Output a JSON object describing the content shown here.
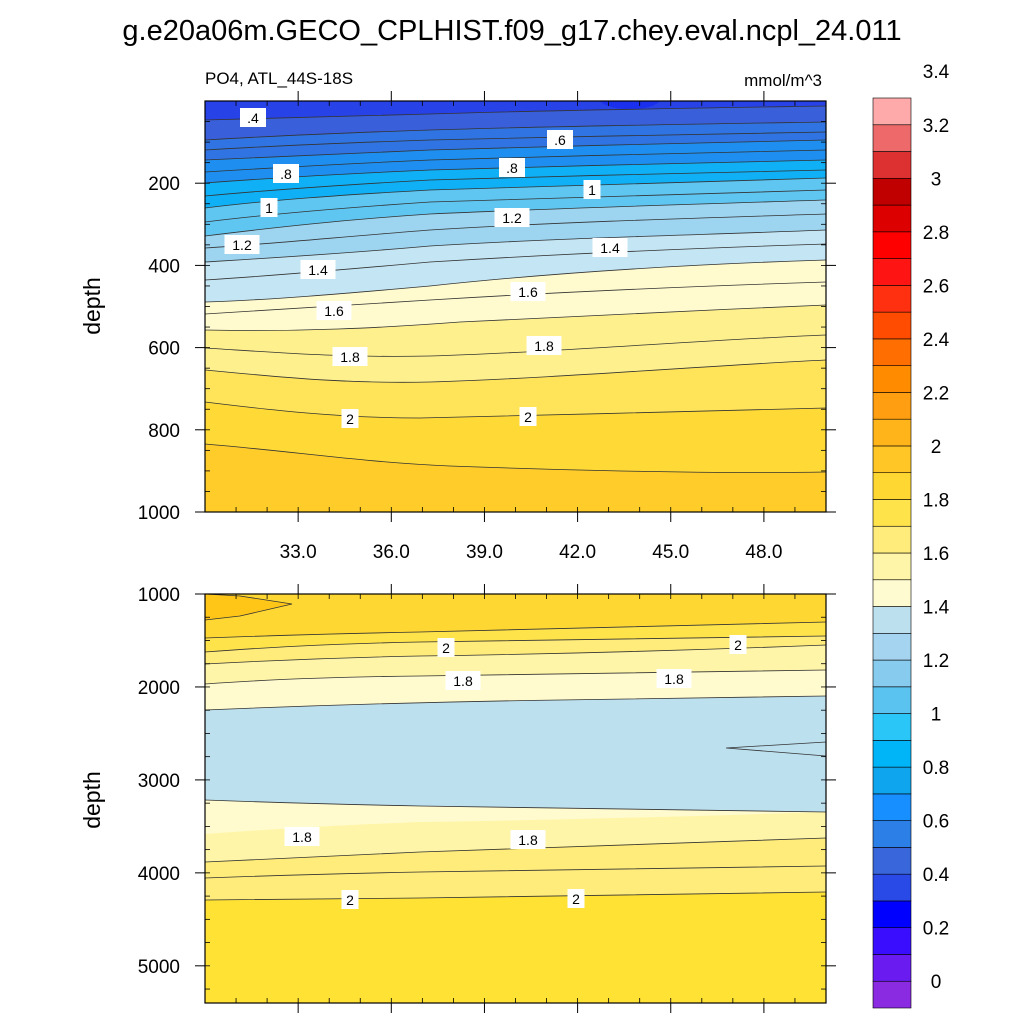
{
  "chart_data": {
    "type": "contour",
    "title": "g.e20a06m.GECO_CPLHIST.f09_g17.chey.eval.ncpl_24.011",
    "subtitle_left": "PO4, ATL_44S-18S",
    "subtitle_right": "mmol/m^3",
    "x_ticks": [
      "33.0",
      "36.0",
      "39.0",
      "42.0",
      "45.0",
      "48.0"
    ],
    "xlim": [
      30,
      50
    ],
    "colorbar": {
      "levels": [
        "0",
        "0.2",
        "0.4",
        "0.6",
        "0.8",
        "1",
        "1.2",
        "1.4",
        "1.6",
        "1.8",
        "2",
        "2.2",
        "2.4",
        "2.6",
        "2.8",
        "3",
        "3.2",
        "3.4"
      ],
      "colors": [
        "#8a2be2",
        "#6a1cf0",
        "#3a0dff",
        "#0000ff",
        "#2a4ae8",
        "#3a66dc",
        "#2b7fe6",
        "#178fff",
        "#0ea5ee",
        "#00b4f8",
        "#2ac6f8",
        "#5bc3f0",
        "#87cbef",
        "#a4d4ef",
        "#bde0ef",
        "#fffbd0",
        "#fff5a8",
        "#ffec7a",
        "#ffe34a",
        "#ffd732",
        "#ffc626",
        "#ffb41a",
        "#ff9e10",
        "#ff8c00",
        "#ff6e00",
        "#ff4c00",
        "#ff3010",
        "#ff1414",
        "#ff0000",
        "#dd0000",
        "#c00000",
        "#dd3030",
        "#ee6a6a",
        "#ffaaaa"
      ]
    },
    "panels": [
      {
        "name": "upper",
        "ylabel": "depth",
        "y_ticks": [
          "200",
          "400",
          "600",
          "800",
          "1000"
        ],
        "ylim": [
          0,
          1000
        ],
        "contour_labels": [
          {
            "text": ".4"
          },
          {
            "text": ".6"
          },
          {
            "text": ".8"
          },
          {
            "text": ".8"
          },
          {
            "text": "1"
          },
          {
            "text": "1"
          },
          {
            "text": "1.2"
          },
          {
            "text": "1.2"
          },
          {
            "text": "1.4"
          },
          {
            "text": "1.4"
          },
          {
            "text": "1.6"
          },
          {
            "text": "1.6"
          },
          {
            "text": "1.8"
          },
          {
            "text": "1.8"
          },
          {
            "text": "2"
          },
          {
            "text": "2"
          }
        ]
      },
      {
        "name": "lower",
        "ylabel": "depth",
        "y_ticks": [
          "1000",
          "2000",
          "3000",
          "4000",
          "5000"
        ],
        "ylim": [
          1000,
          5400
        ],
        "contour_labels": [
          {
            "text": "2"
          },
          {
            "text": "2"
          },
          {
            "text": "1.8"
          },
          {
            "text": "1.8"
          },
          {
            "text": "1.8"
          },
          {
            "text": "1.8"
          },
          {
            "text": "2"
          },
          {
            "text": "2"
          }
        ]
      }
    ]
  }
}
